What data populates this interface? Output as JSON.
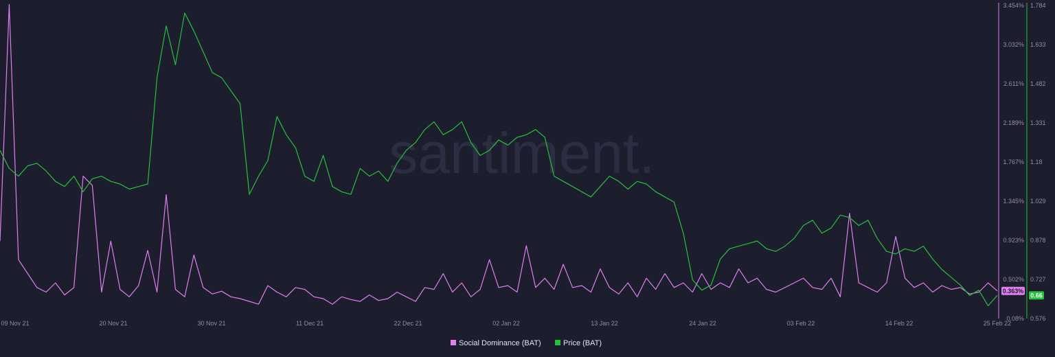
{
  "watermark": "santiment.",
  "chart_data": {
    "type": "line",
    "x_ticks": [
      "09 Nov 21",
      "20 Nov 21",
      "30 Nov 21",
      "11 Dec 21",
      "22 Dec 21",
      "02 Jan 22",
      "13 Jan 22",
      "24 Jan 22",
      "03 Feb 22",
      "14 Feb 22",
      "25 Feb 22"
    ],
    "x_range": [
      "2021-11-09",
      "2022-02-25"
    ],
    "y_left": {
      "ticks": [
        "3.454%",
        "3.032%",
        "2.611%",
        "2.189%",
        "1.767%",
        "1.345%",
        "0.923%",
        "0.502%",
        "0.08%"
      ],
      "min": 0.08,
      "max": 3.454,
      "unit": "%",
      "color": "#e07ff0"
    },
    "y_right": {
      "ticks": [
        "1.784",
        "1.633",
        "1.482",
        "1.331",
        "1.18",
        "1.029",
        "0.878",
        "0.727",
        "0.576"
      ],
      "min": 0.576,
      "max": 1.784,
      "color": "#26c13b"
    },
    "legend_position": "bottom-center",
    "grid": false,
    "series": [
      {
        "name": "Social Dominance (BAT)",
        "axis": "left",
        "color": "#e07ff0",
        "current_value_label": "0.363%",
        "x": [
          "2021-11-09",
          "2021-11-10",
          "2021-11-11",
          "2021-11-12",
          "2021-11-13",
          "2021-11-14",
          "2021-11-15",
          "2021-11-16",
          "2021-11-17",
          "2021-11-18",
          "2021-11-19",
          "2021-11-20",
          "2021-11-21",
          "2021-11-22",
          "2021-11-23",
          "2021-11-24",
          "2021-11-25",
          "2021-11-26",
          "2021-11-27",
          "2021-11-28",
          "2021-11-29",
          "2021-11-30",
          "2021-12-01",
          "2021-12-02",
          "2021-12-03",
          "2021-12-04",
          "2021-12-05",
          "2021-12-06",
          "2021-12-07",
          "2021-12-08",
          "2021-12-09",
          "2021-12-10",
          "2021-12-11",
          "2021-12-12",
          "2021-12-13",
          "2021-12-14",
          "2021-12-15",
          "2021-12-16",
          "2021-12-17",
          "2021-12-18",
          "2021-12-19",
          "2021-12-20",
          "2021-12-21",
          "2021-12-22",
          "2021-12-23",
          "2021-12-24",
          "2021-12-25",
          "2021-12-26",
          "2021-12-27",
          "2021-12-28",
          "2021-12-29",
          "2021-12-30",
          "2021-12-31",
          "2022-01-01",
          "2022-01-02",
          "2022-01-03",
          "2022-01-04",
          "2022-01-05",
          "2022-01-06",
          "2022-01-07",
          "2022-01-08",
          "2022-01-09",
          "2022-01-10",
          "2022-01-11",
          "2022-01-12",
          "2022-01-13",
          "2022-01-14",
          "2022-01-15",
          "2022-01-16",
          "2022-01-17",
          "2022-01-18",
          "2022-01-19",
          "2022-01-20",
          "2022-01-21",
          "2022-01-22",
          "2022-01-23",
          "2022-01-24",
          "2022-01-25",
          "2022-01-26",
          "2022-01-27",
          "2022-01-28",
          "2022-01-29",
          "2022-01-30",
          "2022-01-31",
          "2022-02-01",
          "2022-02-02",
          "2022-02-03",
          "2022-02-04",
          "2022-02-05",
          "2022-02-06",
          "2022-02-07",
          "2022-02-08",
          "2022-02-09",
          "2022-02-10",
          "2022-02-11",
          "2022-02-12",
          "2022-02-13",
          "2022-02-14",
          "2022-02-15",
          "2022-02-16",
          "2022-02-17",
          "2022-02-18",
          "2022-02-19",
          "2022-02-20",
          "2022-02-21",
          "2022-02-22",
          "2022-02-23",
          "2022-02-24",
          "2022-02-25"
        ],
        "values": [
          0.9,
          3.45,
          0.7,
          0.55,
          0.4,
          0.35,
          0.45,
          0.32,
          0.4,
          1.6,
          1.5,
          0.35,
          0.9,
          0.38,
          0.3,
          0.42,
          0.8,
          0.35,
          1.4,
          0.38,
          0.3,
          0.75,
          0.4,
          0.33,
          0.36,
          0.3,
          0.28,
          0.25,
          0.22,
          0.42,
          0.35,
          0.3,
          0.4,
          0.38,
          0.3,
          0.28,
          0.22,
          0.3,
          0.27,
          0.25,
          0.32,
          0.26,
          0.28,
          0.35,
          0.3,
          0.25,
          0.4,
          0.38,
          0.55,
          0.35,
          0.45,
          0.3,
          0.38,
          0.7,
          0.4,
          0.42,
          0.35,
          0.85,
          0.4,
          0.5,
          0.38,
          0.65,
          0.4,
          0.42,
          0.35,
          0.6,
          0.4,
          0.33,
          0.45,
          0.3,
          0.5,
          0.38,
          0.55,
          0.4,
          0.45,
          0.35,
          0.55,
          0.38,
          0.45,
          0.4,
          0.6,
          0.45,
          0.5,
          0.38,
          0.35,
          0.4,
          0.45,
          0.5,
          0.4,
          0.38,
          0.5,
          0.3,
          1.2,
          0.45,
          0.4,
          0.35,
          0.45,
          0.95,
          0.5,
          0.4,
          0.45,
          0.35,
          0.42,
          0.38,
          0.4,
          0.33,
          0.35,
          0.45,
          0.363
        ]
      },
      {
        "name": "Price (BAT)",
        "axis": "right",
        "color": "#26c13b",
        "current_value_label": "0.66",
        "x": [
          "2021-11-09",
          "2021-11-10",
          "2021-11-11",
          "2021-11-12",
          "2021-11-13",
          "2021-11-14",
          "2021-11-15",
          "2021-11-16",
          "2021-11-17",
          "2021-11-18",
          "2021-11-19",
          "2021-11-20",
          "2021-11-21",
          "2021-11-22",
          "2021-11-23",
          "2021-11-24",
          "2021-11-25",
          "2021-11-26",
          "2021-11-27",
          "2021-11-28",
          "2021-11-29",
          "2021-11-30",
          "2021-12-01",
          "2021-12-02",
          "2021-12-03",
          "2021-12-04",
          "2021-12-05",
          "2021-12-06",
          "2021-12-07",
          "2021-12-08",
          "2021-12-09",
          "2021-12-10",
          "2021-12-11",
          "2021-12-12",
          "2021-12-13",
          "2021-12-14",
          "2021-12-15",
          "2021-12-16",
          "2021-12-17",
          "2021-12-18",
          "2021-12-19",
          "2021-12-20",
          "2021-12-21",
          "2021-12-22",
          "2021-12-23",
          "2021-12-24",
          "2021-12-25",
          "2021-12-26",
          "2021-12-27",
          "2021-12-28",
          "2021-12-29",
          "2021-12-30",
          "2021-12-31",
          "2022-01-01",
          "2022-01-02",
          "2022-01-03",
          "2022-01-04",
          "2022-01-05",
          "2022-01-06",
          "2022-01-07",
          "2022-01-08",
          "2022-01-09",
          "2022-01-10",
          "2022-01-11",
          "2022-01-12",
          "2022-01-13",
          "2022-01-14",
          "2022-01-15",
          "2022-01-16",
          "2022-01-17",
          "2022-01-18",
          "2022-01-19",
          "2022-01-20",
          "2022-01-21",
          "2022-01-22",
          "2022-01-23",
          "2022-01-24",
          "2022-01-25",
          "2022-01-26",
          "2022-01-27",
          "2022-01-28",
          "2022-01-29",
          "2022-01-30",
          "2022-01-31",
          "2022-02-01",
          "2022-02-02",
          "2022-02-03",
          "2022-02-04",
          "2022-02-05",
          "2022-02-06",
          "2022-02-07",
          "2022-02-08",
          "2022-02-09",
          "2022-02-10",
          "2022-02-11",
          "2022-02-12",
          "2022-02-13",
          "2022-02-14",
          "2022-02-15",
          "2022-02-16",
          "2022-02-17",
          "2022-02-18",
          "2022-02-19",
          "2022-02-20",
          "2022-02-21",
          "2022-02-22",
          "2022-02-23",
          "2022-02-24",
          "2022-02-25"
        ],
        "values": [
          1.22,
          1.15,
          1.12,
          1.16,
          1.17,
          1.14,
          1.1,
          1.08,
          1.12,
          1.06,
          1.11,
          1.12,
          1.1,
          1.09,
          1.07,
          1.08,
          1.09,
          1.5,
          1.7,
          1.55,
          1.75,
          1.68,
          1.6,
          1.52,
          1.5,
          1.45,
          1.4,
          1.05,
          1.12,
          1.18,
          1.35,
          1.28,
          1.23,
          1.12,
          1.1,
          1.2,
          1.08,
          1.06,
          1.05,
          1.15,
          1.12,
          1.14,
          1.1,
          1.17,
          1.22,
          1.25,
          1.3,
          1.33,
          1.28,
          1.3,
          1.33,
          1.25,
          1.2,
          1.22,
          1.26,
          1.24,
          1.27,
          1.28,
          1.3,
          1.27,
          1.12,
          1.1,
          1.08,
          1.06,
          1.04,
          1.08,
          1.12,
          1.1,
          1.07,
          1.1,
          1.09,
          1.06,
          1.04,
          1.02,
          0.9,
          0.72,
          0.68,
          0.7,
          0.8,
          0.84,
          0.85,
          0.86,
          0.87,
          0.84,
          0.83,
          0.85,
          0.88,
          0.93,
          0.95,
          0.9,
          0.92,
          0.97,
          0.96,
          0.93,
          0.95,
          0.88,
          0.83,
          0.82,
          0.84,
          0.83,
          0.85,
          0.8,
          0.76,
          0.73,
          0.7,
          0.66,
          0.68,
          0.62,
          0.66
        ]
      }
    ]
  }
}
